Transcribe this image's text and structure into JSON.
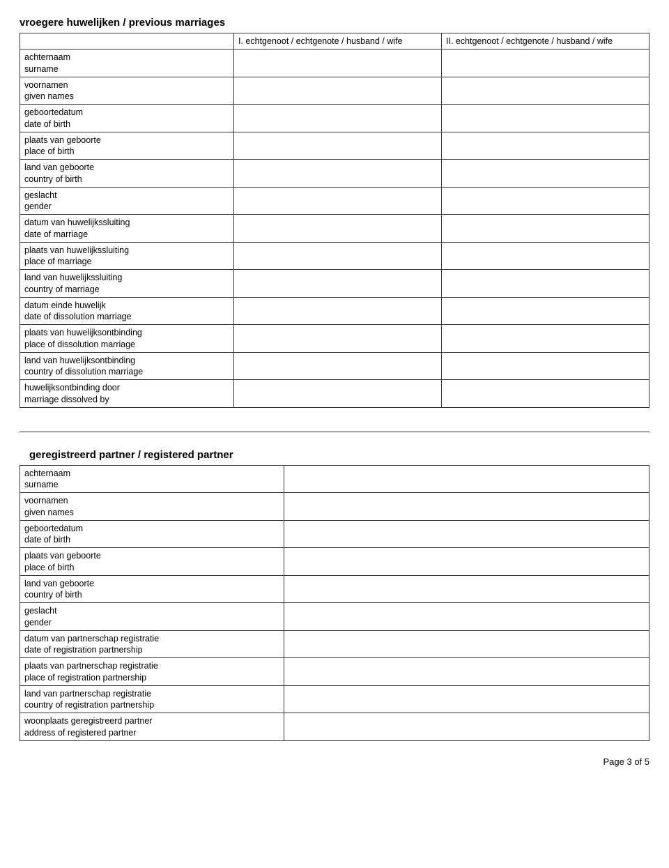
{
  "section1": {
    "title": "vroegere huwelijken / previous marriages",
    "col1_header": "I. echtgenoot / echtgenote / husband / wife",
    "col2_header": "II. echtgenoot / echtgenote / husband / wife",
    "rows": [
      {
        "nl": "achternaam",
        "en": "surname"
      },
      {
        "nl": "voornamen",
        "en": "given names"
      },
      {
        "nl": "geboortedatum",
        "en": "date of birth"
      },
      {
        "nl": "plaats van geboorte",
        "en": "place of birth"
      },
      {
        "nl": "land van geboorte",
        "en": "country of birth"
      },
      {
        "nl": "geslacht",
        "en": "gender"
      },
      {
        "nl": "datum van huwelijkssluiting",
        "en": "date of marriage"
      },
      {
        "nl": "plaats van huwelijkssluiting",
        "en": "place of marriage"
      },
      {
        "nl": "land van huwelijkssluiting",
        "en": "country of marriage"
      },
      {
        "nl": "datum einde huwelijk",
        "en": "date of dissolution marriage"
      },
      {
        "nl": "plaats van huwelijksontbinding",
        "en": "place of dissolution marriage"
      },
      {
        "nl": "land van huwelijksontbinding",
        "en": "country of dissolution marriage"
      },
      {
        "nl": "huwelijksontbinding door",
        "en": "marriage dissolved by"
      }
    ]
  },
  "section2": {
    "title": "geregistreerd partner / registered partner",
    "rows": [
      {
        "nl": "achternaam",
        "en": "surname"
      },
      {
        "nl": "voornamen",
        "en": "given names"
      },
      {
        "nl": "geboortedatum",
        "en": "date of birth"
      },
      {
        "nl": "plaats van geboorte",
        "en": "place of birth"
      },
      {
        "nl": "land van geboorte",
        "en": "country of birth"
      },
      {
        "nl": "geslacht",
        "en": "gender"
      },
      {
        "nl": "datum van partnerschap registratie",
        "en": "date of registration partnership"
      },
      {
        "nl": "plaats van partnerschap registratie",
        "en": "place of registration partnership"
      },
      {
        "nl": "land van partnerschap registratie",
        "en": "country of registration partnership"
      },
      {
        "nl": "woonplaats geregistreerd partner",
        "en": "address of registered partner"
      }
    ]
  },
  "footer": "Page 3 of 5"
}
